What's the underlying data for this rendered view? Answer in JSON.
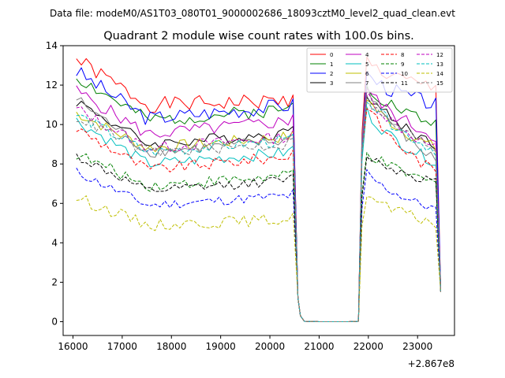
{
  "chart_data": {
    "type": "line",
    "suptitle": "Data file: modeM0/AS1T03_080T01_9000002686_18093cztM0_level2_quad_clean.evt",
    "title": "Quadrant 2 module wise count rates with 100.0s bins.",
    "xlabel": "",
    "ylabel": "",
    "x_offset_label": "+2.867e8",
    "xlim": [
      15800,
      23750
    ],
    "ylim": [
      -0.7,
      14.0
    ],
    "xticks": [
      16000,
      17000,
      18000,
      19000,
      20000,
      21000,
      22000,
      23000
    ],
    "xtick_labels": [
      "16000",
      "17000",
      "18000",
      "19000",
      "20000",
      "21000",
      "22000",
      "23000"
    ],
    "yticks": [
      0,
      2,
      4,
      6,
      8,
      10,
      12,
      14
    ],
    "ytick_labels": [
      "0",
      "2",
      "4",
      "6",
      "8",
      "10",
      "12",
      "14"
    ],
    "grid": false,
    "legend": {
      "position": "top-right",
      "ncol": 4
    },
    "segments": {
      "seg1": {
        "x0": 16070,
        "dx": 100,
        "n": 45
      },
      "gap": {
        "x": [
          20570,
          20620,
          20700,
          21000,
          21300,
          21600,
          21800
        ],
        "values": [
          1.2,
          0.3,
          0.02,
          0.0,
          0.0,
          0.0,
          0.02
        ]
      },
      "seg2": {
        "x0": 21870,
        "dx": 100,
        "n": 16
      },
      "end": {
        "x": 23470
      }
    },
    "series": [
      {
        "name": "0",
        "color": "#ff0000",
        "dash": false,
        "start": 13.3,
        "mid": 11.0,
        "end": 11.2,
        "noise": 0.4,
        "pk": 13.6,
        "e2": 11.8,
        "last": 1.6,
        "seed": 1
      },
      {
        "name": "1",
        "color": "#008000",
        "dash": false,
        "start": 12.4,
        "mid": 10.2,
        "end": 10.8,
        "noise": 0.35,
        "pk": 12.8,
        "e2": 10.0,
        "last": 1.6,
        "seed": 2
      },
      {
        "name": "2",
        "color": "#0000ff",
        "dash": false,
        "start": 12.7,
        "mid": 10.3,
        "end": 11.0,
        "noise": 0.4,
        "pk": 13.1,
        "e2": 11.0,
        "last": 1.6,
        "seed": 3
      },
      {
        "name": "3",
        "color": "#000000",
        "dash": false,
        "start": 11.2,
        "mid": 9.0,
        "end": 9.6,
        "noise": 0.3,
        "pk": 12.6,
        "e2": 9.0,
        "last": 1.5,
        "seed": 4
      },
      {
        "name": "4",
        "color": "#bf00bf",
        "dash": false,
        "start": 11.7,
        "mid": 9.5,
        "end": 10.2,
        "noise": 0.35,
        "pk": 12.7,
        "e2": 9.4,
        "last": 1.5,
        "seed": 5
      },
      {
        "name": "5",
        "color": "#00bfbf",
        "dash": false,
        "start": 10.2,
        "mid": 8.0,
        "end": 8.6,
        "noise": 0.3,
        "pk": 11.6,
        "e2": 8.1,
        "last": 1.5,
        "seed": 6
      },
      {
        "name": "6",
        "color": "#bfbf00",
        "dash": false,
        "start": 10.6,
        "mid": 8.8,
        "end": 9.4,
        "noise": 0.3,
        "pk": 12.3,
        "e2": 8.8,
        "last": 1.5,
        "seed": 7
      },
      {
        "name": "7",
        "color": "#808080",
        "dash": false,
        "start": 11.3,
        "mid": 8.6,
        "end": 9.2,
        "noise": 0.3,
        "pk": 13.3,
        "e2": 8.2,
        "last": 1.5,
        "seed": 8
      },
      {
        "name": "8",
        "color": "#ff0000",
        "dash": true,
        "start": 9.8,
        "mid": 7.7,
        "end": 8.4,
        "noise": 0.3,
        "pk": 12.3,
        "e2": 7.6,
        "last": 1.5,
        "seed": 9
      },
      {
        "name": "9",
        "color": "#008000",
        "dash": true,
        "start": 8.5,
        "mid": 6.9,
        "end": 7.4,
        "noise": 0.3,
        "pk": 9.2,
        "e2": 7.0,
        "last": 1.5,
        "seed": 10
      },
      {
        "name": "10",
        "color": "#0000ff",
        "dash": true,
        "start": 7.6,
        "mid": 5.9,
        "end": 6.4,
        "noise": 0.25,
        "pk": 8.2,
        "e2": 5.7,
        "last": 1.5,
        "seed": 11
      },
      {
        "name": "11",
        "color": "#000000",
        "dash": true,
        "start": 8.4,
        "mid": 6.6,
        "end": 7.2,
        "noise": 0.25,
        "pk": 9.0,
        "e2": 7.1,
        "last": 1.5,
        "seed": 12
      },
      {
        "name": "12",
        "color": "#bf00bf",
        "dash": true,
        "start": 10.8,
        "mid": 8.8,
        "end": 9.4,
        "noise": 0.3,
        "pk": 12.6,
        "e2": 8.8,
        "last": 1.5,
        "seed": 13
      },
      {
        "name": "13",
        "color": "#00bfbf",
        "dash": true,
        "start": 10.5,
        "mid": 8.6,
        "end": 9.2,
        "noise": 0.3,
        "pk": 12.4,
        "e2": 8.7,
        "last": 1.5,
        "seed": 14
      },
      {
        "name": "14",
        "color": "#bfbf00",
        "dash": true,
        "start": 6.3,
        "mid": 4.9,
        "end": 5.2,
        "noise": 0.3,
        "pk": 6.9,
        "e2": 5.0,
        "last": 1.5,
        "seed": 15
      },
      {
        "name": "15",
        "color": "#808080",
        "dash": true,
        "start": 10.4,
        "mid": 8.6,
        "end": 9.0,
        "noise": 0.3,
        "pk": 12.2,
        "e2": 8.8,
        "last": 1.5,
        "seed": 16
      }
    ]
  }
}
